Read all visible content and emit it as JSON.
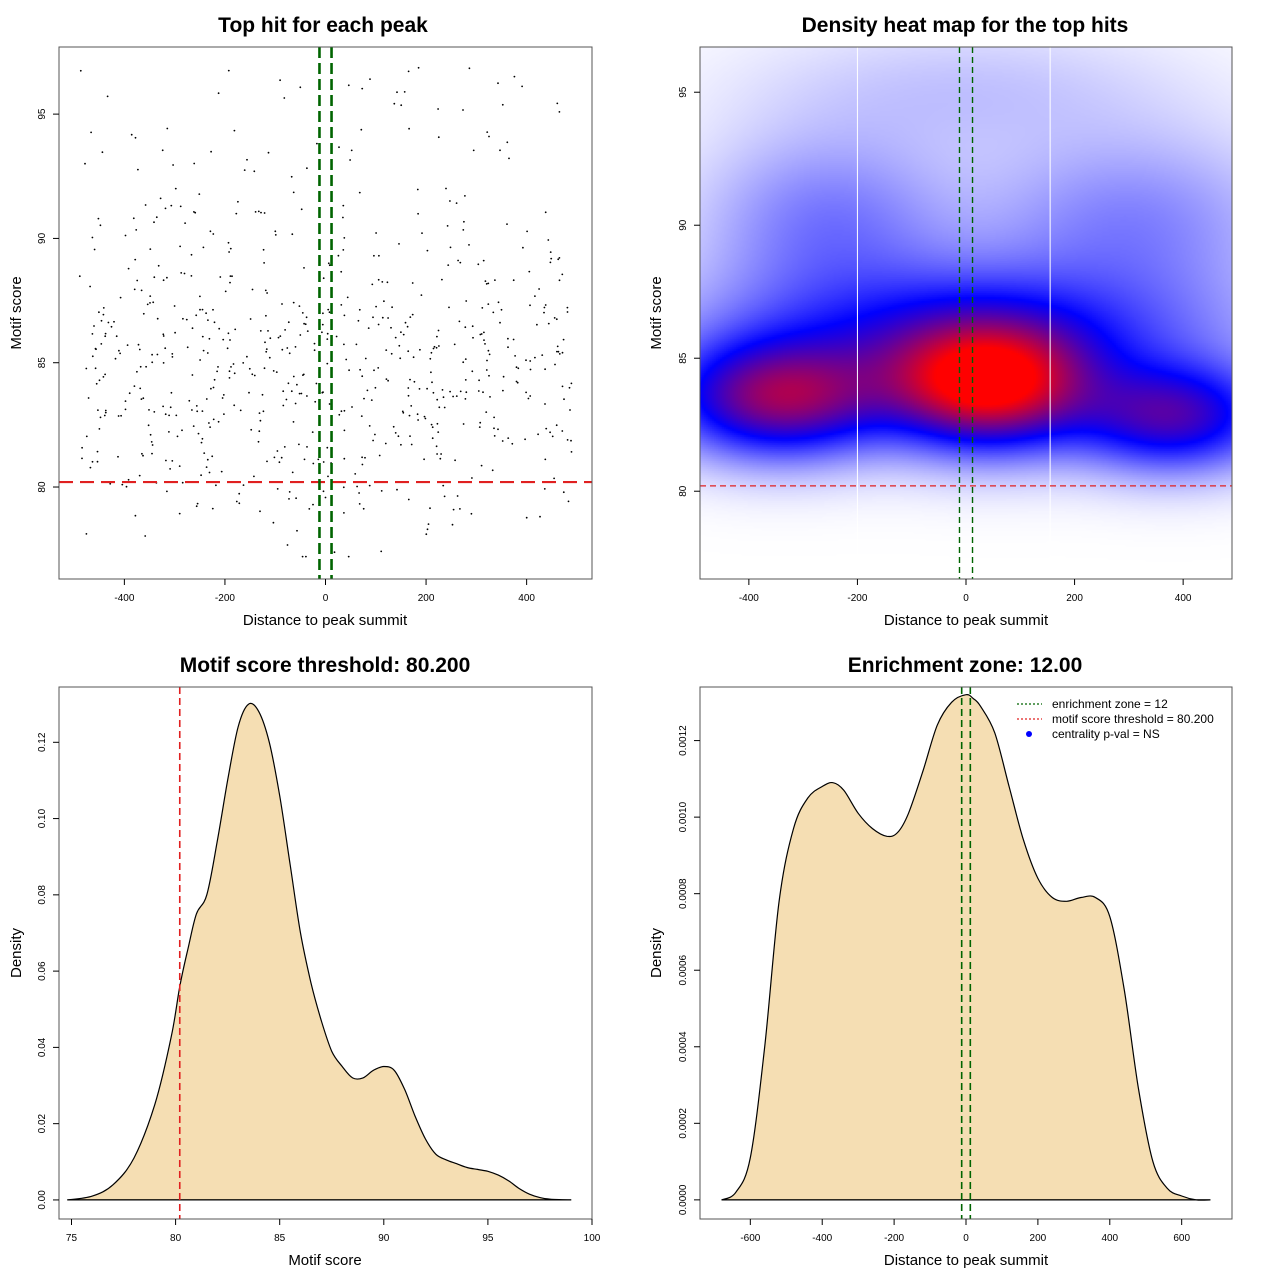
{
  "colors": {
    "threshold": "#e02020",
    "zone": "#006400",
    "fill": "#f5deb3",
    "point": "#000000",
    "heat_high": "#ff0000",
    "heat_mid": "#0000ff",
    "legend_point": "#0000ff"
  },
  "chart_data": [
    {
      "id": "scatter",
      "type": "scatter",
      "title": "Top hit for each peak",
      "xlabel": "Distance to peak summit",
      "ylabel": "Motif score",
      "xlim": [
        -530,
        530
      ],
      "ylim": [
        76.3,
        97.7
      ],
      "xticks": [
        -400,
        -200,
        0,
        200,
        400
      ],
      "yticks": [
        80,
        85,
        90,
        95
      ],
      "threshold": 80.2,
      "zone": [
        -12,
        12
      ],
      "points": {
        "seed": 7,
        "count": 700,
        "x_range": [
          -490,
          490
        ],
        "score_mean": 84.2,
        "score_sd": 2.9,
        "score_min": 77.2,
        "score_max": 96.9
      }
    },
    {
      "id": "heatmap",
      "type": "heatmap",
      "title": "Density heat map for the top hits",
      "xlabel": "Distance to peak summit",
      "ylabel": "Motif score",
      "xlim": [
        -490,
        490
      ],
      "ylim": [
        76.7,
        96.7
      ],
      "xticks": [
        -400,
        -200,
        0,
        200,
        400
      ],
      "yticks": [
        80,
        85,
        90,
        95
      ],
      "threshold": 80.2,
      "zone": [
        -12,
        12
      ],
      "gridlines_x": [
        -200,
        155
      ],
      "blobs": [
        {
          "x": 40,
          "y": 84.0,
          "sx": 120,
          "sy": 1.5,
          "w": 1.0
        },
        {
          "x": -340,
          "y": 83.5,
          "sx": 130,
          "sy": 1.4,
          "w": 0.72
        },
        {
          "x": 380,
          "y": 82.8,
          "sx": 120,
          "sy": 1.3,
          "w": 0.55
        },
        {
          "x": 0,
          "y": 85.8,
          "sx": 300,
          "sy": 1.8,
          "w": 0.4
        },
        {
          "x": -250,
          "y": 90.0,
          "sx": 150,
          "sy": 2.2,
          "w": 0.18
        },
        {
          "x": 300,
          "y": 90.0,
          "sx": 180,
          "sy": 2.2,
          "w": 0.16
        },
        {
          "x": 0,
          "y": 95.0,
          "sx": 250,
          "sy": 1.6,
          "w": 0.06
        }
      ]
    },
    {
      "id": "score-density",
      "type": "area",
      "title": "Motif score threshold: 80.200",
      "xlabel": "Motif score",
      "ylabel": "Density",
      "xlim": [
        74.4,
        100
      ],
      "ylim": [
        -0.005,
        0.1345
      ],
      "xticks": [
        75,
        80,
        85,
        90,
        95,
        100
      ],
      "yticks": [
        0.0,
        0.02,
        0.04,
        0.06,
        0.08,
        0.1,
        0.12
      ],
      "ytick_labels": [
        "0.00",
        "0.02",
        "0.04",
        "0.06",
        "0.08",
        "0.10",
        "0.12"
      ],
      "threshold": 80.2,
      "x": [
        74.8,
        76,
        77,
        78,
        79,
        79.8,
        80.2,
        80.6,
        81,
        81.5,
        82,
        82.5,
        83,
        83.5,
        84,
        84.5,
        85,
        85.5,
        86,
        86.5,
        87,
        87.5,
        88,
        88.5,
        89,
        89.5,
        90,
        90.5,
        91,
        91.5,
        92,
        92.5,
        93,
        93.5,
        94,
        94.5,
        95,
        95.5,
        96,
        96.5,
        97,
        97.5,
        98,
        99
      ],
      "y": [
        0.0,
        0.001,
        0.004,
        0.011,
        0.025,
        0.043,
        0.056,
        0.066,
        0.075,
        0.08,
        0.094,
        0.11,
        0.124,
        0.13,
        0.128,
        0.12,
        0.106,
        0.088,
        0.07,
        0.057,
        0.047,
        0.039,
        0.035,
        0.032,
        0.032,
        0.034,
        0.035,
        0.034,
        0.029,
        0.022,
        0.016,
        0.012,
        0.0105,
        0.0095,
        0.0085,
        0.008,
        0.0075,
        0.0065,
        0.005,
        0.003,
        0.0015,
        0.0006,
        0.0002,
        0.0
      ]
    },
    {
      "id": "distance-density",
      "type": "area",
      "title": "Enrichment zone: 12.00",
      "xlabel": "Distance to peak summit",
      "ylabel": "Density",
      "xlim": [
        -740,
        740
      ],
      "ylim": [
        -5e-05,
        0.00134
      ],
      "xticks": [
        -600,
        -400,
        -200,
        0,
        200,
        400,
        600
      ],
      "yticks": [
        0.0,
        0.0002,
        0.0004,
        0.0006,
        0.0008,
        0.001,
        0.0012
      ],
      "ytick_labels": [
        "0.0000",
        "0.0002",
        "0.0004",
        "0.0006",
        "0.0008",
        "0.0010",
        "0.0012"
      ],
      "zone": [
        -12,
        12
      ],
      "x": [
        -680,
        -640,
        -600,
        -560,
        -520,
        -480,
        -440,
        -400,
        -370,
        -340,
        -300,
        -260,
        -220,
        -190,
        -160,
        -120,
        -80,
        -40,
        0,
        20,
        40,
        80,
        120,
        160,
        200,
        240,
        280,
        320,
        360,
        400,
        440,
        480,
        520,
        560,
        600,
        640,
        680
      ],
      "y": [
        0.0,
        2e-05,
        0.00011,
        0.0004,
        0.00078,
        0.00097,
        0.00105,
        0.00108,
        0.00109,
        0.00107,
        0.00101,
        0.00097,
        0.00095,
        0.00096,
        0.00101,
        0.00112,
        0.00124,
        0.0013,
        0.00132,
        0.00131,
        0.00129,
        0.00122,
        0.00108,
        0.00094,
        0.00084,
        0.00079,
        0.00078,
        0.00079,
        0.00079,
        0.00074,
        0.00055,
        0.00029,
        0.0001,
        3e-05,
        1e-05,
        0.0,
        0.0
      ],
      "legend": [
        {
          "label": "enrichment zone = 12",
          "kind": "line",
          "color": "#006400"
        },
        {
          "label": "motif score threshold = 80.200",
          "kind": "line",
          "color": "#e02020"
        },
        {
          "label": "centrality p-val = NS",
          "kind": "point",
          "color": "#0000ff"
        }
      ]
    }
  ]
}
